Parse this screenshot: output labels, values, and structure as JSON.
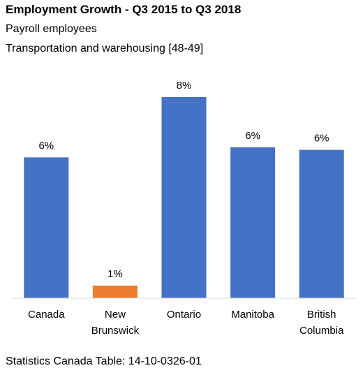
{
  "title": "Employment Growth - Q3 2015 to Q3 2018",
  "subtitle_1": "Payroll employees",
  "subtitle_2": "Transportation and warehousing  [48-49]",
  "footer": "Statistics Canada Table: 14-10-0326-01",
  "colors": {
    "default_bar": "#4472C4",
    "highlight_bar": "#ED7D31",
    "axis": "#D9D9D9"
  },
  "chart_data": {
    "type": "bar",
    "categories": [
      [
        "Canada"
      ],
      [
        "New",
        "Brunswick"
      ],
      [
        "Ontario"
      ],
      [
        "Manitoba"
      ],
      [
        "British",
        "Columbia"
      ]
    ],
    "values": [
      5.6,
      0.5,
      8.0,
      6.0,
      5.9
    ],
    "data_labels": [
      "6%",
      "1%",
      "8%",
      "6%",
      "6%"
    ],
    "highlight": [
      false,
      true,
      false,
      false,
      false
    ],
    "ylim": [
      0,
      9
    ],
    "grid": false,
    "legend": "none"
  }
}
